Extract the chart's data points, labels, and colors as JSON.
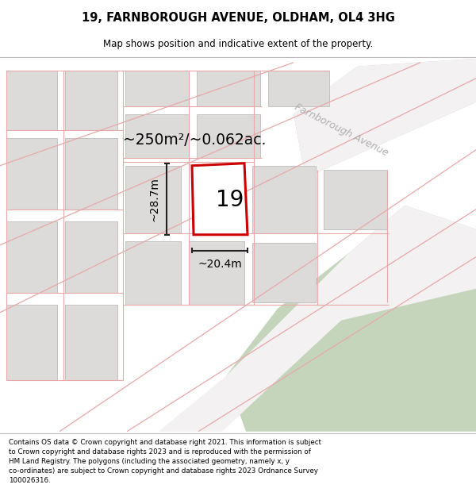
{
  "title": "19, FARNBOROUGH AVENUE, OLDHAM, OL4 3HG",
  "subtitle": "Map shows position and indicative extent of the property.",
  "footer": "Contains OS data © Crown copyright and database right 2021. This information is subject\nto Crown copyright and database rights 2023 and is reproduced with the permission of\nHM Land Registry. The polygons (including the associated geometry, namely x, y\nco-ordinates) are subject to Crown copyright and database rights 2023 Ordnance Survey\n100026316.",
  "area_label": "~250m²/~0.062ac.",
  "width_label": "~20.4m",
  "height_label": "~28.7m",
  "property_number": "19",
  "map_bg": "#eeecec",
  "road_green": "#c5d5bc",
  "building_color": "#dddada",
  "building_outline": "#c5c2c2",
  "red_line_color": "#cc0000",
  "pink_road_color": "#e8a8a8",
  "street_label": "Farnborough Avenue",
  "dim_color": "#222222"
}
